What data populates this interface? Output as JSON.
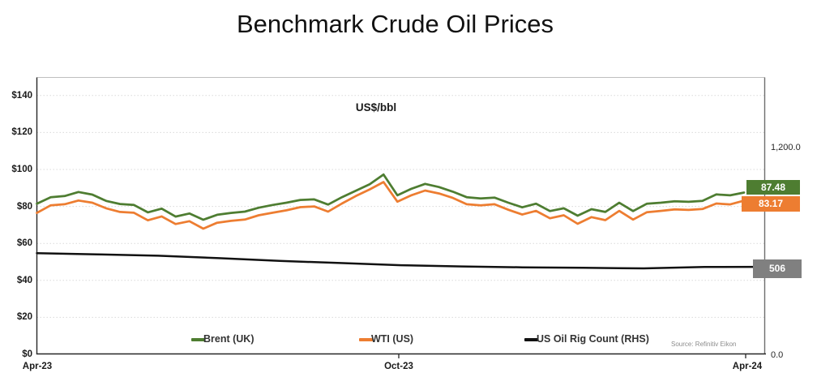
{
  "title": "Benchmark Crude Oil Prices",
  "source": "Source: Refinitiv Eikon",
  "chart_data": {
    "type": "line",
    "title": "Benchmark Crude Oil Prices",
    "unit_label": "US$/bbl",
    "grid": "horizontal-dotted",
    "x_axis": {
      "tick_labels": [
        "Apr-23",
        "Oct-23",
        "Apr-24"
      ]
    },
    "left_axis": {
      "min": 0,
      "max": 140,
      "tick_values": [
        140,
        120,
        100,
        80,
        60,
        40,
        20,
        0
      ],
      "tick_labels": [
        "$140",
        "$120",
        "$100",
        "$80",
        "$60",
        "$40",
        "$20",
        "$0"
      ]
    },
    "right_axis": {
      "min": 0,
      "max": 1200,
      "ticks": [
        {
          "label": "1,200.0",
          "value": 1200
        },
        {
          "label": "0.0",
          "value": 0
        }
      ]
    },
    "series": [
      {
        "name": "Brent (UK)",
        "axis": "left",
        "color": "#4e7d31",
        "end_label": "87.48",
        "end_label_bg": "#4e7d31",
        "values": [
          81.5,
          85.0,
          85.6,
          87.8,
          86.4,
          83.0,
          81.3,
          80.8,
          76.8,
          78.8,
          74.5,
          76.2,
          72.8,
          75.5,
          76.5,
          77.2,
          79.3,
          80.8,
          82.0,
          83.5,
          83.8,
          81.0,
          85.0,
          88.5,
          92.0,
          97.3,
          86.0,
          89.5,
          92.2,
          90.5,
          88.0,
          85.0,
          84.3,
          84.8,
          82.0,
          79.5,
          81.5,
          77.5,
          79.0,
          75.0,
          78.5,
          77.0,
          82.0,
          77.5,
          81.5,
          82.0,
          82.8,
          82.5,
          83.0,
          86.5,
          86.0,
          87.48
        ]
      },
      {
        "name": "WTI (US)",
        "axis": "left",
        "color": "#ED7D31",
        "end_label": "83.17",
        "end_label_bg": "#ED7D31",
        "values": [
          76.5,
          80.6,
          81.2,
          83.2,
          82.0,
          79.0,
          77.0,
          76.6,
          72.5,
          74.6,
          70.5,
          72.0,
          68.0,
          71.2,
          72.2,
          72.9,
          75.2,
          76.6,
          77.9,
          79.6,
          80.0,
          77.2,
          81.6,
          85.6,
          89.2,
          93.2,
          82.6,
          86.0,
          88.6,
          87.0,
          84.6,
          81.2,
          80.6,
          81.2,
          78.2,
          75.6,
          77.6,
          73.6,
          75.2,
          70.6,
          74.2,
          72.6,
          77.6,
          72.9,
          76.9,
          77.6,
          78.4,
          78.1,
          78.6,
          81.6,
          81.1,
          83.17
        ]
      },
      {
        "name": "US Oil Rig Count (RHS)",
        "axis": "right",
        "color": "#111111",
        "end_label": "506",
        "end_label_bg": "#808080",
        "values": [
          585,
          578,
          570,
          556,
          540,
          528,
          515,
          508,
          503,
          500,
          497,
          505,
          506
        ]
      }
    ]
  },
  "legend": {
    "items": [
      {
        "label": "Brent (UK)"
      },
      {
        "label": "WTI (US)"
      },
      {
        "label": "US Oil Rig Count (RHS)"
      }
    ]
  }
}
